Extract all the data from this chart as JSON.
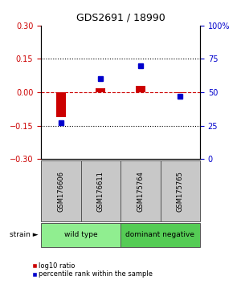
{
  "title": "GDS2691 / 18990",
  "samples": [
    "GSM176606",
    "GSM176611",
    "GSM175764",
    "GSM175765"
  ],
  "log10_ratio": [
    -0.11,
    0.02,
    0.03,
    -0.005
  ],
  "percentile_rank": [
    27,
    60,
    70,
    47
  ],
  "group_labels": [
    "wild type",
    "dominant negative"
  ],
  "group_colors": [
    "#90EE90",
    "#55CC55"
  ],
  "ylim_left": [
    -0.3,
    0.3
  ],
  "ylim_right": [
    0,
    100
  ],
  "yticks_left": [
    -0.3,
    -0.15,
    0,
    0.15,
    0.3
  ],
  "yticks_right": [
    0,
    25,
    50,
    75,
    100
  ],
  "ytick_labels_right": [
    "0",
    "25",
    "50",
    "75",
    "100%"
  ],
  "hlines_dotted": [
    -0.15,
    0.15
  ],
  "hline_dashed": 0.0,
  "red_color": "#CC0000",
  "blue_color": "#0000CC",
  "bar_width": 0.25,
  "sample_box_color": "#C8C8C8",
  "fig_width": 3.0,
  "fig_height": 3.54,
  "dpi": 100
}
